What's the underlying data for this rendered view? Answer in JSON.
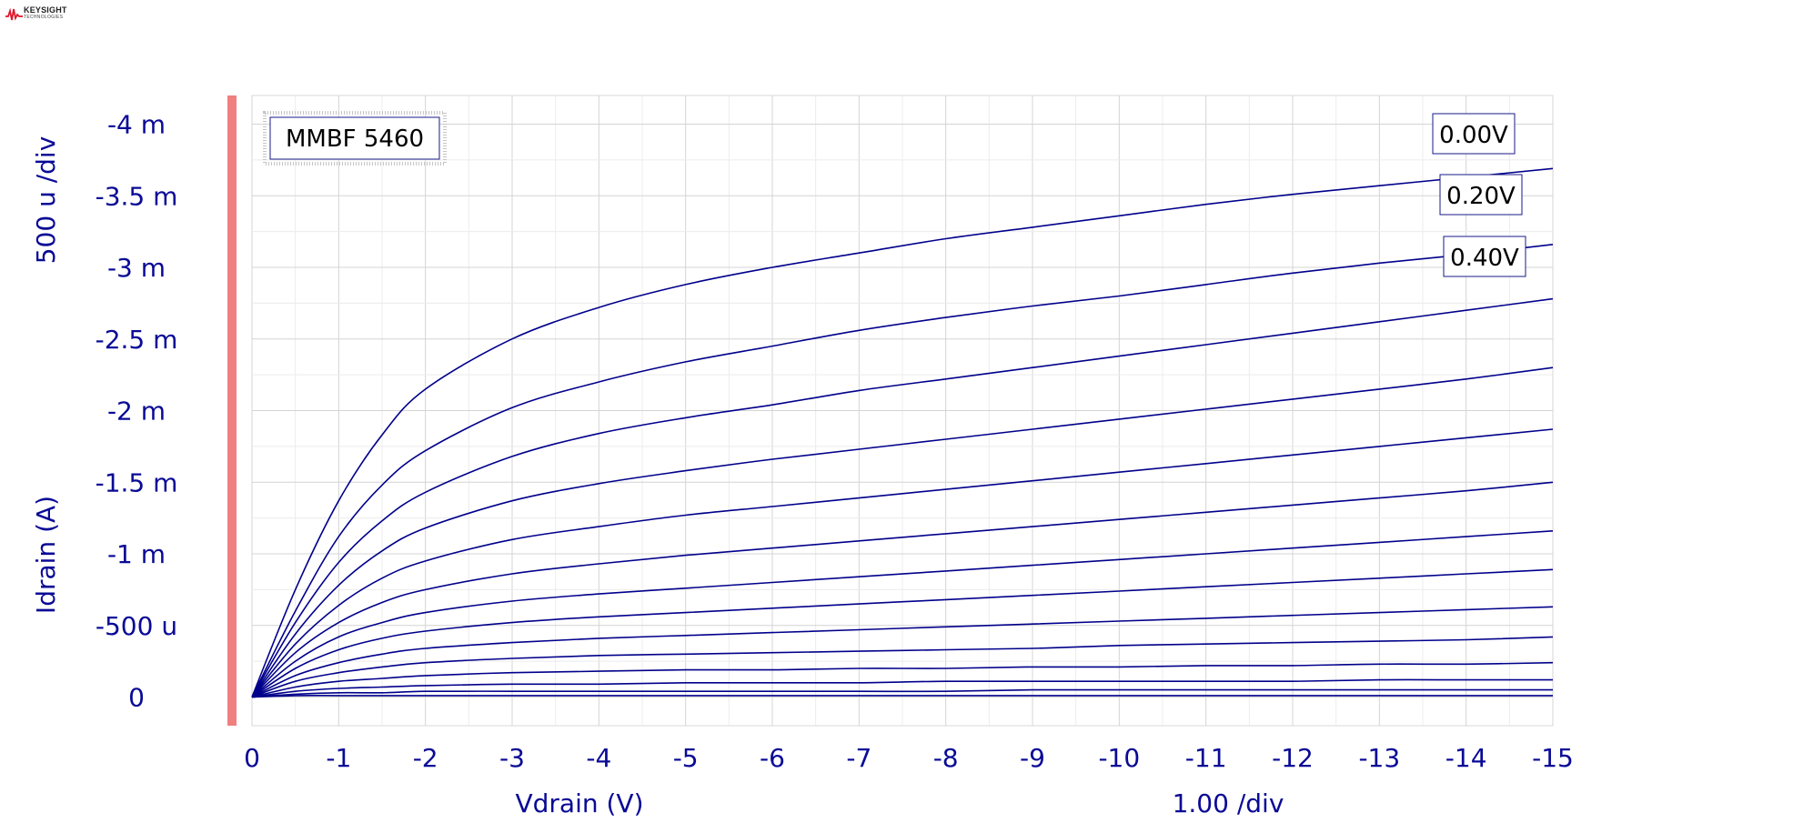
{
  "logo": {
    "brand": "KEYSIGHT",
    "sub": "TECHNOLOGIES"
  },
  "chart_data": {
    "type": "line",
    "annotation": "MMBF 5460",
    "xlabel": "Vdrain (V)",
    "ylabel": "Idrain (A)",
    "x_scale_text": "1.00  /div",
    "y_scale_text": "500 u /div",
    "xlim": [
      0,
      -15
    ],
    "ylim": [
      0.0002,
      -0.0042
    ],
    "x_ticks": [
      0,
      -1,
      -2,
      -3,
      -4,
      -5,
      -6,
      -7,
      -8,
      -9,
      -10,
      -11,
      -12,
      -13,
      -14,
      -15
    ],
    "x_tick_labels": [
      "0",
      "-1",
      "-2",
      "-3",
      "-4",
      "-5",
      "-6",
      "-7",
      "-8",
      "-9",
      "-10",
      "-11",
      "-12",
      "-13",
      "-14",
      "-15"
    ],
    "y_ticks": [
      0,
      -0.0005,
      -0.001,
      -0.0015,
      -0.002,
      -0.0025,
      -0.003,
      -0.0035,
      -0.004
    ],
    "y_tick_labels": [
      "0",
      "-500 u",
      "-1 m",
      "-1.5 m",
      "-2 m",
      "-2.5 m",
      "-3 m",
      "-3.5 m",
      "-4 m"
    ],
    "grid": true,
    "line_color": "#00008b",
    "x": [
      0,
      -0.5,
      -1,
      -1.5,
      -2,
      -3,
      -4,
      -5,
      -6,
      -7,
      -8,
      -9,
      -10,
      -11,
      -12,
      -13,
      -14,
      -15
    ],
    "series": [
      {
        "name": "0.00V",
        "values": [
          0,
          -0.00075,
          -0.00137,
          -0.00183,
          -0.00215,
          -0.0025,
          -0.00272,
          -0.00288,
          -0.003,
          -0.0031,
          -0.0032,
          -0.00328,
          -0.00336,
          -0.00344,
          -0.00351,
          -0.00357,
          -0.00363,
          -0.00369
        ]
      },
      {
        "name": "0.20V",
        "values": [
          0,
          -0.0006,
          -0.00112,
          -0.00148,
          -0.00172,
          -0.00202,
          -0.0022,
          -0.00234,
          -0.00245,
          -0.00256,
          -0.00265,
          -0.00273,
          -0.0028,
          -0.00288,
          -0.00296,
          -0.00303,
          -0.00309,
          -0.00316
        ]
      },
      {
        "name": "0.40V",
        "values": [
          0,
          -0.00052,
          -0.00094,
          -0.00123,
          -0.00143,
          -0.00168,
          -0.00184,
          -0.00195,
          -0.00204,
          -0.00214,
          -0.00222,
          -0.0023,
          -0.00238,
          -0.00246,
          -0.00254,
          -0.00262,
          -0.0027,
          -0.00278
        ]
      },
      {
        "name": "",
        "values": [
          0,
          -0.00044,
          -0.00078,
          -0.00102,
          -0.00118,
          -0.00137,
          -0.00149,
          -0.00158,
          -0.00166,
          -0.00173,
          -0.0018,
          -0.00187,
          -0.00194,
          -0.00201,
          -0.00208,
          -0.00215,
          -0.00222,
          -0.0023
        ]
      },
      {
        "name": "",
        "values": [
          0,
          -0.00037,
          -0.00064,
          -0.00083,
          -0.00095,
          -0.0011,
          -0.00119,
          -0.00127,
          -0.00133,
          -0.00139,
          -0.00145,
          -0.00151,
          -0.00157,
          -0.00163,
          -0.00169,
          -0.00175,
          -0.00181,
          -0.00187
        ]
      },
      {
        "name": "",
        "values": [
          0,
          -0.00031,
          -0.00052,
          -0.00066,
          -0.00075,
          -0.00086,
          -0.00093,
          -0.00099,
          -0.00104,
          -0.00109,
          -0.00114,
          -0.00119,
          -0.00124,
          -0.00129,
          -0.00134,
          -0.00139,
          -0.00144,
          -0.0015
        ]
      },
      {
        "name": "",
        "values": [
          0,
          -0.00025,
          -0.00042,
          -0.00052,
          -0.00059,
          -0.00067,
          -0.00072,
          -0.00076,
          -0.0008,
          -0.00084,
          -0.00088,
          -0.00092,
          -0.00096,
          -0.001,
          -0.00104,
          -0.00108,
          -0.00112,
          -0.00116
        ]
      },
      {
        "name": "",
        "values": [
          0,
          -0.0002,
          -0.00033,
          -0.00041,
          -0.00046,
          -0.00052,
          -0.00056,
          -0.00059,
          -0.00062,
          -0.00065,
          -0.00068,
          -0.00071,
          -0.00074,
          -0.00077,
          -0.0008,
          -0.00083,
          -0.00086,
          -0.00089
        ]
      },
      {
        "name": "",
        "values": [
          0,
          -0.00015,
          -0.00024,
          -0.0003,
          -0.00034,
          -0.00038,
          -0.00041,
          -0.00043,
          -0.00045,
          -0.00047,
          -0.00049,
          -0.00051,
          -0.00053,
          -0.00055,
          -0.00057,
          -0.00059,
          -0.00061,
          -0.00063
        ]
      },
      {
        "name": "",
        "values": [
          0,
          -0.00011,
          -0.00017,
          -0.00021,
          -0.00024,
          -0.00027,
          -0.00029,
          -0.0003,
          -0.00031,
          -0.00032,
          -0.00033,
          -0.00034,
          -0.00036,
          -0.00037,
          -0.00038,
          -0.00039,
          -0.0004,
          -0.00042
        ]
      },
      {
        "name": "",
        "values": [
          0,
          -7e-05,
          -0.00011,
          -0.00013,
          -0.00015,
          -0.00017,
          -0.00018,
          -0.00019,
          -0.00019,
          -0.0002,
          -0.0002,
          -0.00021,
          -0.00021,
          -0.00022,
          -0.00022,
          -0.00023,
          -0.00023,
          -0.00024
        ]
      },
      {
        "name": "",
        "values": [
          0,
          -4e-05,
          -6e-05,
          -7e-05,
          -8e-05,
          -9e-05,
          -9e-05,
          -0.0001,
          -0.0001,
          -0.0001,
          -0.00011,
          -0.00011,
          -0.00011,
          -0.00011,
          -0.00011,
          -0.00012,
          -0.00012,
          -0.00012
        ]
      },
      {
        "name": "",
        "values": [
          0,
          -2e-05,
          -3e-05,
          -3e-05,
          -4e-05,
          -4e-05,
          -4e-05,
          -4e-05,
          -4e-05,
          -4e-05,
          -4e-05,
          -5e-05,
          -5e-05,
          -5e-05,
          -5e-05,
          -5e-05,
          -5e-05,
          -5e-05
        ]
      },
      {
        "name": "",
        "values": [
          0,
          -1e-05,
          -1e-05,
          -1e-05,
          -1e-05,
          -1e-05,
          -1e-05,
          -1e-05,
          -1e-05,
          -1e-05,
          -1e-05,
          -1e-05,
          -1e-05,
          -1e-05,
          -1e-05,
          -1e-05,
          -1e-05,
          -1e-05
        ]
      }
    ]
  }
}
